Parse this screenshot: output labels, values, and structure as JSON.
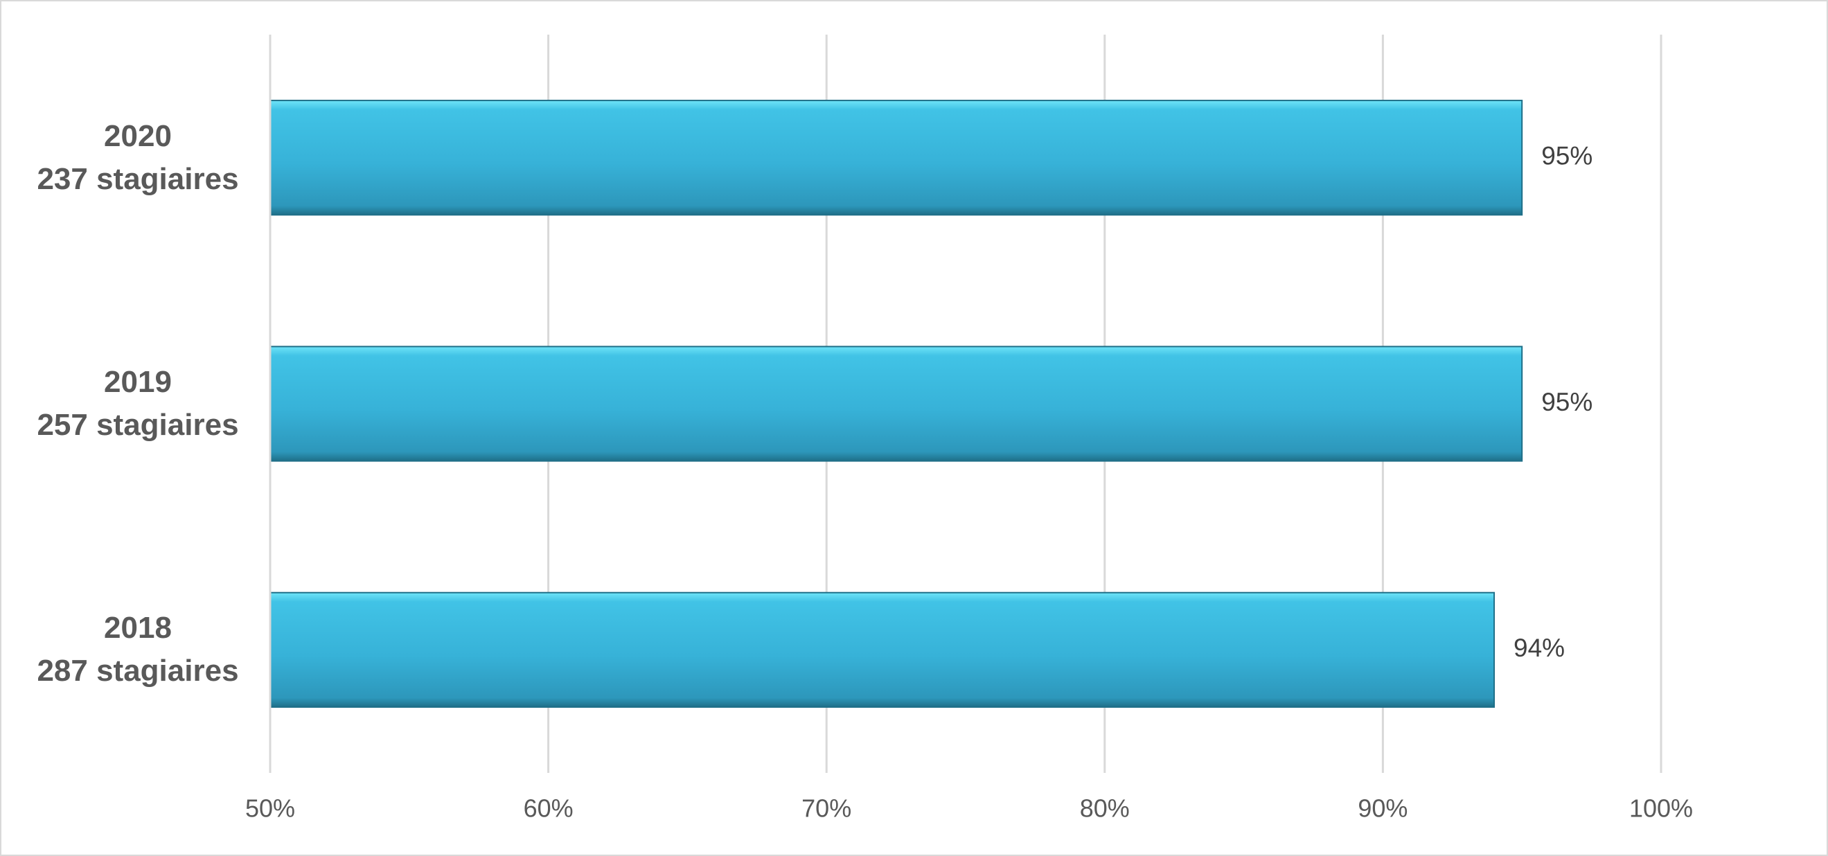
{
  "chart_data": {
    "type": "bar",
    "orientation": "horizontal",
    "categories": [
      "2020\n237 stagiaires",
      "2019\n257 stagiaires",
      "2018\n287 stagiaires"
    ],
    "values": [
      95,
      95,
      94
    ],
    "value_labels": [
      "95%",
      "95%",
      "94%"
    ],
    "color": "#37b2d8",
    "xlim": [
      50,
      100
    ],
    "xticks": [
      {
        "value": 50,
        "label": "50%"
      },
      {
        "value": 60,
        "label": "60%"
      },
      {
        "value": 70,
        "label": "70%"
      },
      {
        "value": 80,
        "label": "80%"
      },
      {
        "value": 90,
        "label": "90%"
      },
      {
        "value": 100,
        "label": "100%"
      }
    ],
    "grid": true
  }
}
